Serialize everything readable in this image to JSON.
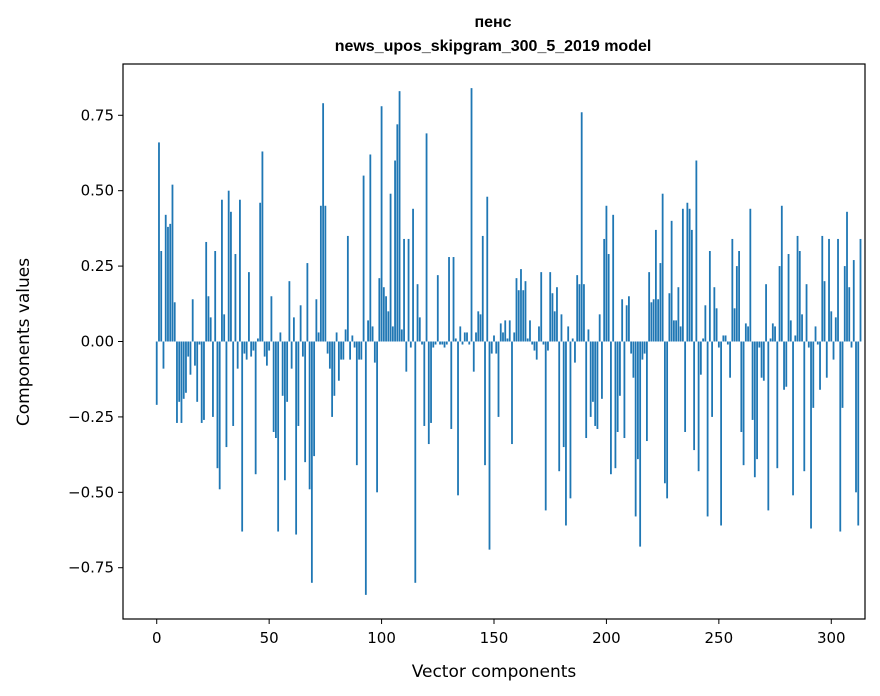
{
  "chart_data": {
    "type": "bar",
    "title": "пенс",
    "subtitle": "news_upos_skipgram_300_5_2019 model",
    "xlabel": "Vector components",
    "ylabel": "Components values",
    "xlim": [
      -15,
      315
    ],
    "ylim": [
      -0.92,
      0.92
    ],
    "xticks": [
      0,
      50,
      100,
      150,
      200,
      250,
      300
    ],
    "yticks": [
      -0.75,
      -0.5,
      -0.25,
      0.0,
      0.25,
      0.5,
      0.75
    ],
    "xtick_labels": [
      "0",
      "50",
      "100",
      "150",
      "200",
      "250",
      "300"
    ],
    "ytick_labels": [
      "−0.75",
      "−0.50",
      "−0.25",
      "0.00",
      "0.25",
      "0.50",
      "0.75"
    ],
    "bar_color": "#1f77b4",
    "values": [
      -0.21,
      0.66,
      0.3,
      -0.09,
      0.42,
      0.38,
      0.39,
      0.52,
      0.13,
      -0.27,
      -0.2,
      -0.27,
      -0.19,
      -0.17,
      -0.05,
      -0.11,
      0.14,
      -0.08,
      -0.2,
      -0.01,
      -0.27,
      -0.26,
      0.33,
      0.15,
      0.08,
      -0.25,
      0.3,
      -0.42,
      -0.49,
      0.47,
      0.09,
      -0.35,
      0.5,
      0.43,
      -0.28,
      0.29,
      -0.09,
      0.47,
      -0.63,
      -0.04,
      -0.06,
      0.23,
      -0.05,
      -0.03,
      -0.44,
      0.01,
      0.46,
      0.63,
      -0.05,
      -0.08,
      -0.03,
      0.15,
      -0.3,
      -0.32,
      -0.63,
      0.03,
      -0.18,
      -0.46,
      -0.2,
      0.2,
      -0.09,
      0.08,
      -0.64,
      -0.28,
      0.12,
      -0.05,
      -0.4,
      0.26,
      -0.49,
      -0.8,
      -0.38,
      0.14,
      0.03,
      0.45,
      0.79,
      0.45,
      -0.04,
      -0.09,
      -0.25,
      -0.18,
      0.03,
      -0.13,
      -0.06,
      -0.06,
      0.04,
      0.35,
      -0.06,
      0.02,
      -0.02,
      -0.41,
      -0.06,
      -0.06,
      0.55,
      -0.84,
      0.07,
      0.62,
      0.05,
      -0.07,
      -0.5,
      0.21,
      0.78,
      0.18,
      0.15,
      0.1,
      0.49,
      0.05,
      0.6,
      0.72,
      0.83,
      0.04,
      0.34,
      -0.1,
      0.34,
      -0.02,
      0.44,
      -0.8,
      0.19,
      0.08,
      -0.01,
      -0.28,
      0.69,
      -0.34,
      -0.27,
      -0.02,
      -0.01,
      0.22,
      -0.01,
      -0.01,
      -0.02,
      -0.01,
      0.28,
      -0.29,
      0.28,
      0.01,
      -0.51,
      0.05,
      -0.01,
      0.03,
      0.03,
      -0.01,
      0.84,
      -0.1,
      0.03,
      0.1,
      0.09,
      0.35,
      -0.41,
      0.48,
      -0.69,
      -0.04,
      0.02,
      -0.04,
      -0.25,
      0.06,
      0.03,
      0.07,
      0.01,
      0.07,
      -0.34,
      0.03,
      0.21,
      0.17,
      0.24,
      0.17,
      0.2,
      0.01,
      0.07,
      -0.01,
      -0.03,
      -0.06,
      0.05,
      0.23,
      -0.01,
      -0.56,
      -0.03,
      0.23,
      0.16,
      0.1,
      0.18,
      -0.43,
      0.09,
      -0.35,
      -0.61,
      0.05,
      -0.52,
      0.01,
      -0.07,
      0.22,
      0.19,
      0.76,
      0.19,
      -0.32,
      0.04,
      -0.25,
      -0.2,
      -0.28,
      -0.29,
      0.09,
      -0.19,
      0.34,
      0.45,
      0.29,
      -0.44,
      0.42,
      -0.42,
      -0.3,
      -0.18,
      0.14,
      -0.32,
      0.12,
      0.15,
      -0.04,
      -0.12,
      -0.58,
      -0.39,
      -0.68,
      -0.06,
      -0.04,
      -0.33,
      0.23,
      0.13,
      0.14,
      0.37,
      0.14,
      0.26,
      0.49,
      -0.47,
      -0.52,
      0.16,
      0.4,
      0.07,
      0.07,
      0.18,
      0.05,
      0.44,
      -0.3,
      0.46,
      0.44,
      0.37,
      -0.36,
      0.6,
      -0.43,
      -0.11,
      0.01,
      0.12,
      -0.58,
      0.3,
      -0.25,
      0.18,
      0.11,
      -0.02,
      -0.61,
      0.02,
      0.02,
      -0.01,
      -0.12,
      0.34,
      0.11,
      0.25,
      0.3,
      -0.3,
      -0.41,
      0.06,
      0.05,
      0.44,
      -0.26,
      -0.45,
      -0.39,
      -0.02,
      -0.12,
      -0.13,
      0.19,
      -0.56,
      0.01,
      0.06,
      0.05,
      -0.42,
      0.25,
      0.45,
      -0.16,
      -0.15,
      0.29,
      0.07,
      -0.51,
      0.02,
      0.35,
      0.3,
      0.09,
      -0.43,
      0.19,
      -0.02,
      -0.62,
      -0.22,
      0.05,
      -0.01,
      -0.16,
      0.35,
      0.2,
      -0.12,
      0.34,
      0.1,
      -0.06,
      0.08,
      0.34,
      -0.63,
      -0.22,
      0.25,
      0.43,
      0.18,
      -0.02,
      0.27,
      -0.5,
      -0.61,
      0.34
    ]
  }
}
